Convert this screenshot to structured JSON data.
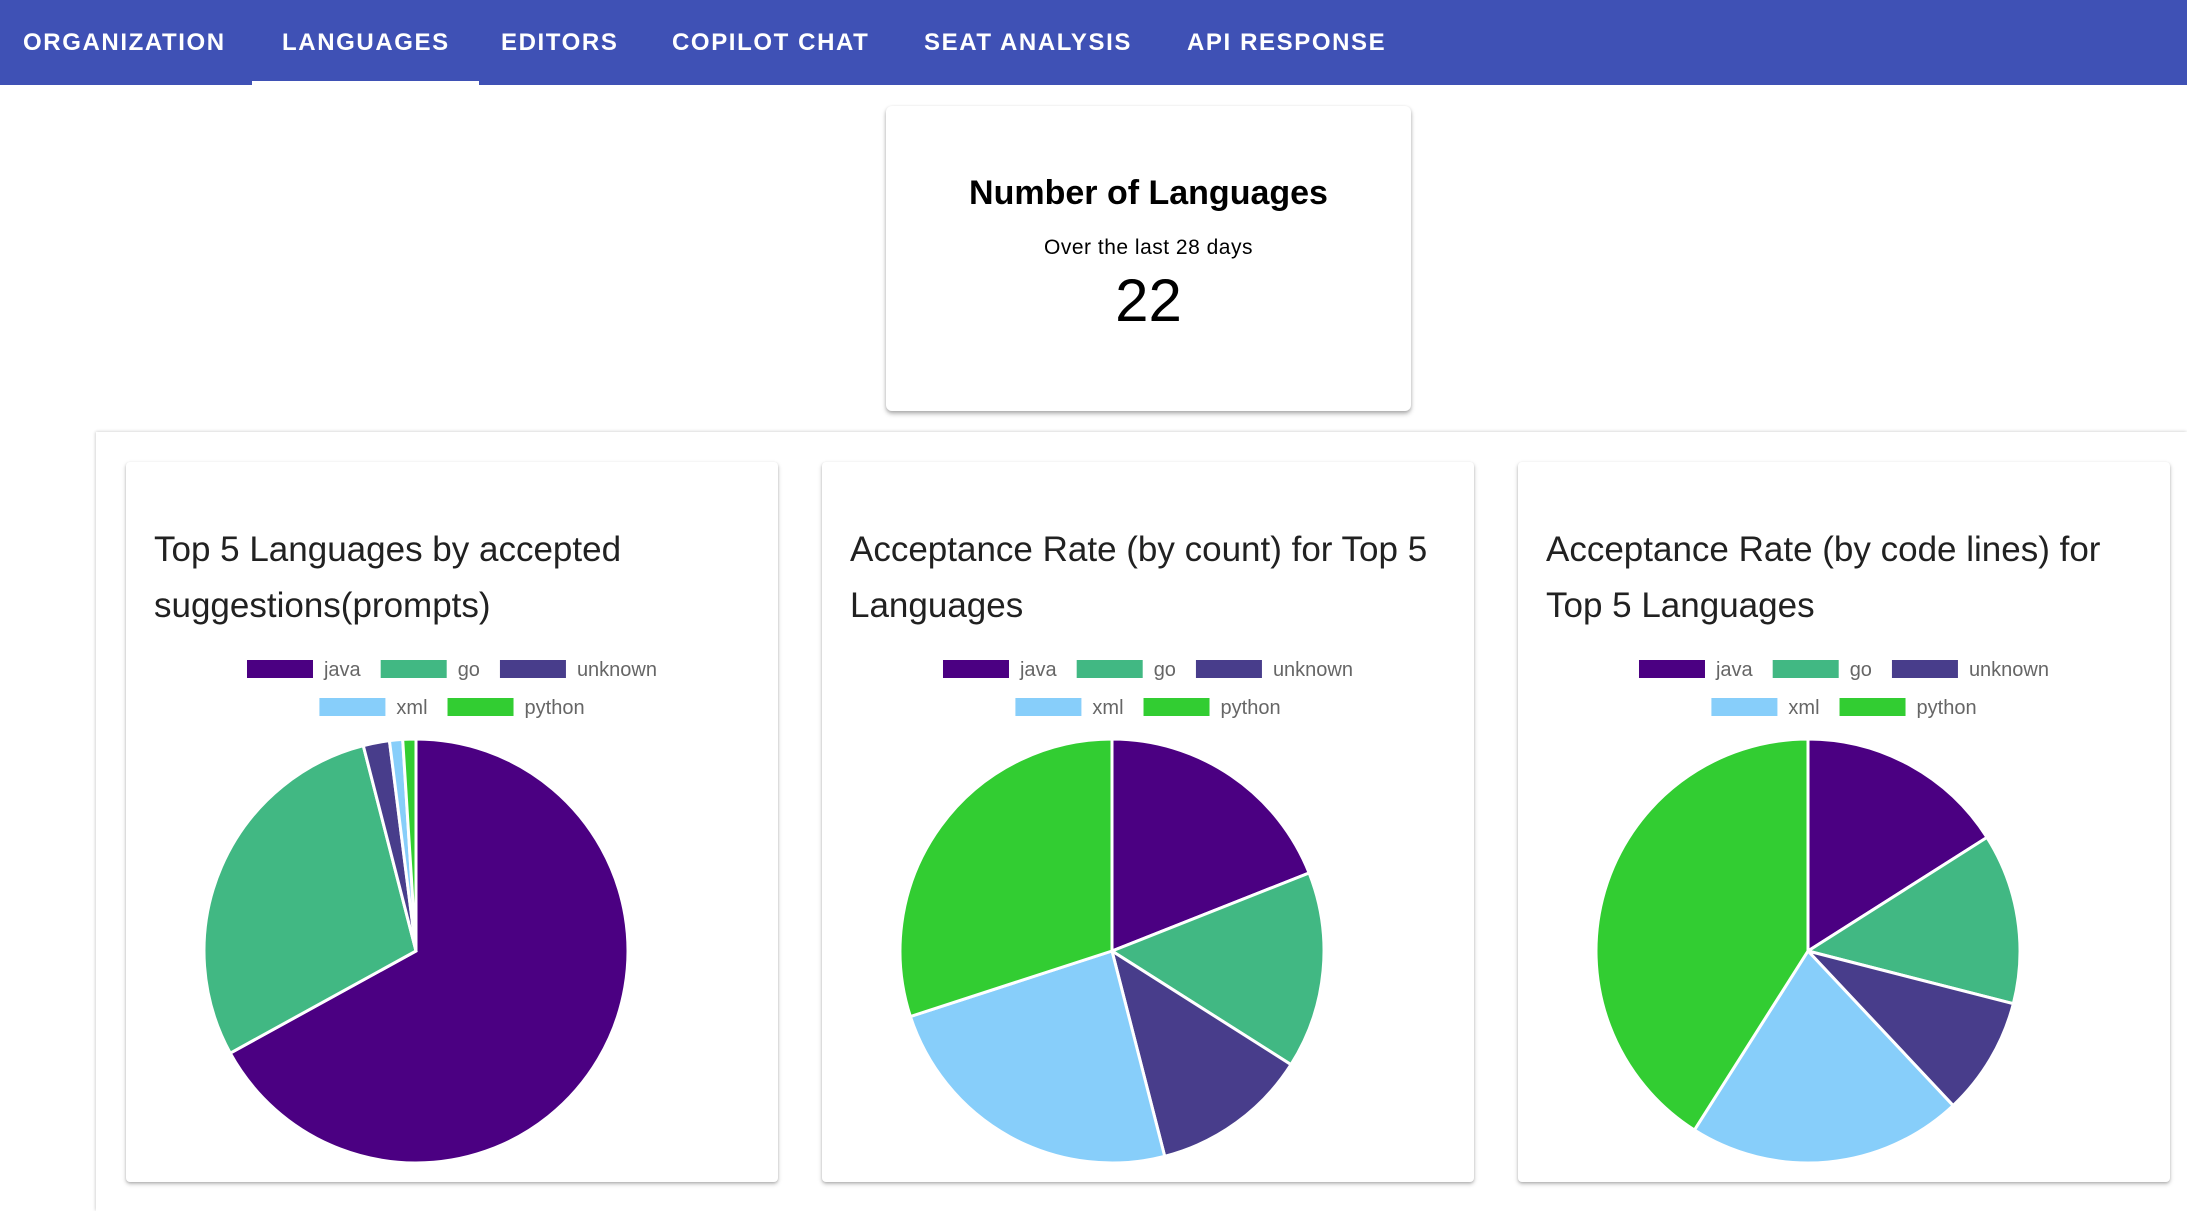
{
  "tabs": [
    {
      "label": "ORGANIZATION",
      "active": false
    },
    {
      "label": "LANGUAGES",
      "active": true
    },
    {
      "label": "EDITORS",
      "active": false
    },
    {
      "label": "COPILOT CHAT",
      "active": false
    },
    {
      "label": "SEAT ANALYSIS",
      "active": false
    },
    {
      "label": "API RESPONSE",
      "active": false
    }
  ],
  "summary": {
    "title": "Number of Languages",
    "subtitle": "Over the last 28 days",
    "value": "22"
  },
  "colors": {
    "tabbar": "#3f51b5",
    "java": "#4b0082",
    "go": "#41b883",
    "unknown": "#483d8b",
    "xml": "#87cefa",
    "python": "#32cd32"
  },
  "chart_data": [
    {
      "type": "pie",
      "title": "Top 5 Languages by accepted suggestions(prompts)",
      "categories": [
        "java",
        "go",
        "unknown",
        "xml",
        "python"
      ],
      "values": [
        67,
        29,
        2,
        1,
        1
      ],
      "legend": "top"
    },
    {
      "type": "pie",
      "title": "Acceptance Rate (by count) for Top 5 Languages",
      "categories": [
        "java",
        "go",
        "unknown",
        "xml",
        "python"
      ],
      "values": [
        19,
        15,
        12,
        24,
        30
      ],
      "legend": "top"
    },
    {
      "type": "pie",
      "title": "Acceptance Rate (by code lines) for Top 5 Languages",
      "categories": [
        "java",
        "go",
        "unknown",
        "xml",
        "python"
      ],
      "values": [
        16,
        13,
        9,
        21,
        41
      ],
      "legend": "top"
    }
  ]
}
